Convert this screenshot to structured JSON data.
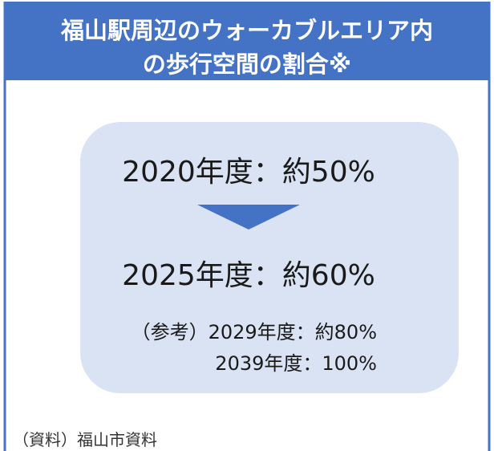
{
  "header": {
    "title_lines": [
      "福山駅周辺のウォーカブルエリア内",
      "の歩行空間の割合※"
    ]
  },
  "steps": [
    "2020年度：約50%",
    "2025年度：約60%"
  ],
  "reference_lines": [
    "（参考）2029年度：約80%",
    "2039年度：100%"
  ],
  "source": "（資料）福山市資料"
}
